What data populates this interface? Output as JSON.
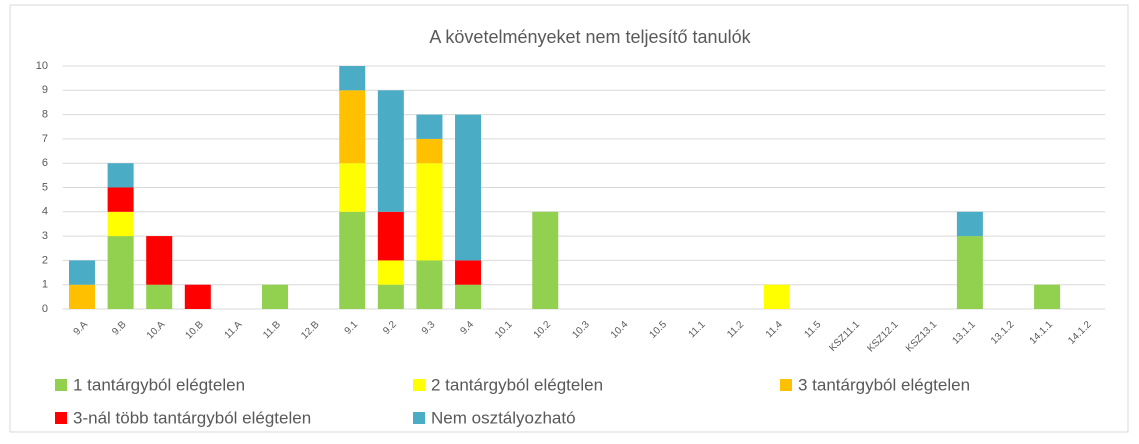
{
  "chart_data": {
    "type": "stacked_bar",
    "title": "A követelményeket nem teljesítő tanulók",
    "categories": [
      "9.A",
      "9.B",
      "10.A",
      "10.B",
      "11.A",
      "11.B",
      "12.B",
      "9.1",
      "9.2",
      "9.3",
      "9.4",
      "10.1",
      "10.2",
      "10.3",
      "10.4",
      "10.5",
      "11.1",
      "11.2",
      "11.4",
      "11.5",
      "KSZ11.1",
      "KSZ12.1",
      "KSZ13.1",
      "13.1.1",
      "13.1.2",
      "14.1.1",
      "14.1.2"
    ],
    "series": [
      {
        "name": "1 tantárgyból elégtelen",
        "color": "#92d050",
        "values": [
          0,
          3,
          1,
          0,
          0,
          1,
          0,
          4,
          1,
          2,
          1,
          0,
          4,
          0,
          0,
          0,
          0,
          0,
          0,
          0,
          0,
          0,
          0,
          3,
          0,
          1,
          0
        ]
      },
      {
        "name": "2 tantárgyból elégtelen",
        "color": "#ffff00",
        "values": [
          0,
          1,
          0,
          0,
          0,
          0,
          0,
          2,
          1,
          4,
          0,
          0,
          0,
          0,
          0,
          0,
          0,
          0,
          1,
          0,
          0,
          0,
          0,
          0,
          0,
          0,
          0
        ]
      },
      {
        "name": "3 tantárgyból elégtelen",
        "color": "#ffc000",
        "values": [
          1,
          0,
          0,
          0,
          0,
          0,
          0,
          3,
          0,
          1,
          0,
          0,
          0,
          0,
          0,
          0,
          0,
          0,
          0,
          0,
          0,
          0,
          0,
          0,
          0,
          0,
          0
        ]
      },
      {
        "name": "3-nál több tantárgyból elégtelen",
        "color": "#ff0000",
        "values": [
          0,
          1,
          2,
          1,
          0,
          0,
          0,
          0,
          2,
          0,
          1,
          0,
          0,
          0,
          0,
          0,
          0,
          0,
          0,
          0,
          0,
          0,
          0,
          0,
          0,
          0,
          0
        ]
      },
      {
        "name": "Nem osztályozható",
        "color": "#4bacc6",
        "values": [
          1,
          1,
          0,
          0,
          0,
          0,
          0,
          1,
          5,
          1,
          6,
          0,
          0,
          0,
          0,
          0,
          0,
          0,
          0,
          0,
          0,
          0,
          0,
          1,
          0,
          0,
          0
        ]
      }
    ],
    "ylim": [
      0,
      10
    ],
    "yticks": [
      0,
      1,
      2,
      3,
      4,
      5,
      6,
      7,
      8,
      9,
      10
    ],
    "grid": true,
    "legend": "bottom"
  }
}
